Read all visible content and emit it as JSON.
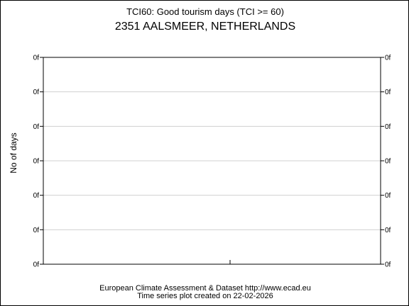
{
  "chart_data": {
    "type": "line",
    "title": "TCI60: Good tourism days (TCI >= 60)",
    "subtitle": "2351 AALSMEER, NETHERLANDS",
    "xlabel": "",
    "ylabel": "No of days",
    "y_tick_labels": [
      "0f",
      "0f",
      "0f",
      "0f",
      "0f",
      "0f",
      "0f"
    ],
    "x": [],
    "series": [
      {
        "values": []
      }
    ],
    "grid": true,
    "legend": "none"
  },
  "footer": {
    "line1": "European Climate Assessment & Dataset  http://www.ecad.eu",
    "line2": "Time series plot created on 22-02-2026"
  }
}
